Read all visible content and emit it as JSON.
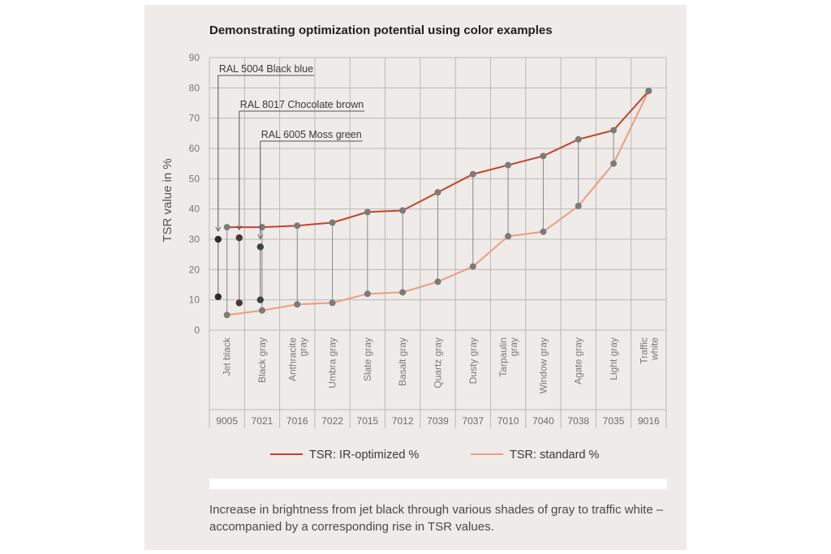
{
  "chart_data": {
    "type": "line",
    "title": "Demonstrating optimization potential using color examples",
    "ylabel": "TSR value in %",
    "ylim": [
      0,
      90
    ],
    "yticks": [
      0,
      10,
      20,
      30,
      40,
      50,
      60,
      70,
      80,
      90
    ],
    "grid": true,
    "legend_position": "bottom",
    "categories": [
      "Jet black",
      "Black gray",
      "Anthracite gray",
      "Umbra gray",
      "Slate gray",
      "Basalt gray",
      "Quartz gray",
      "Dusty gray",
      "Tarpaulin gray",
      "Window gray",
      "Agate gray",
      "Light gray",
      "Traffic white"
    ],
    "codes": [
      "9005",
      "7021",
      "7016",
      "7022",
      "7015",
      "7012",
      "7039",
      "7037",
      "7010",
      "7040",
      "7038",
      "7035",
      "9016"
    ],
    "series": [
      {
        "name": "TSR: IR-optimized %",
        "color": "#c5432a",
        "values": [
          34,
          34,
          34.5,
          35.5,
          39,
          39.5,
          45.5,
          51.5,
          54.5,
          57.5,
          63,
          66,
          79
        ]
      },
      {
        "name": "TSR: standard %",
        "color": "#eb9e7e",
        "values": [
          5,
          6.5,
          8.5,
          9,
          12,
          12.5,
          16,
          21,
          31,
          32.5,
          41,
          55,
          79
        ]
      }
    ],
    "annotations": [
      {
        "label": "RAL 5004 Black blue",
        "x_position": 0.25,
        "values": [
          30,
          11
        ]
      },
      {
        "label": "RAL 8017 Chocolate brown",
        "x_position": 0.85,
        "values": [
          30.5,
          9
        ]
      },
      {
        "label": "RAL 6005 Moss green",
        "x_position": 1.45,
        "values": [
          27.5,
          10
        ]
      }
    ]
  },
  "caption": "Increase in brightness from jet black through various shades of gray to traffic white – accompanied by a corresponding rise in TSR values."
}
